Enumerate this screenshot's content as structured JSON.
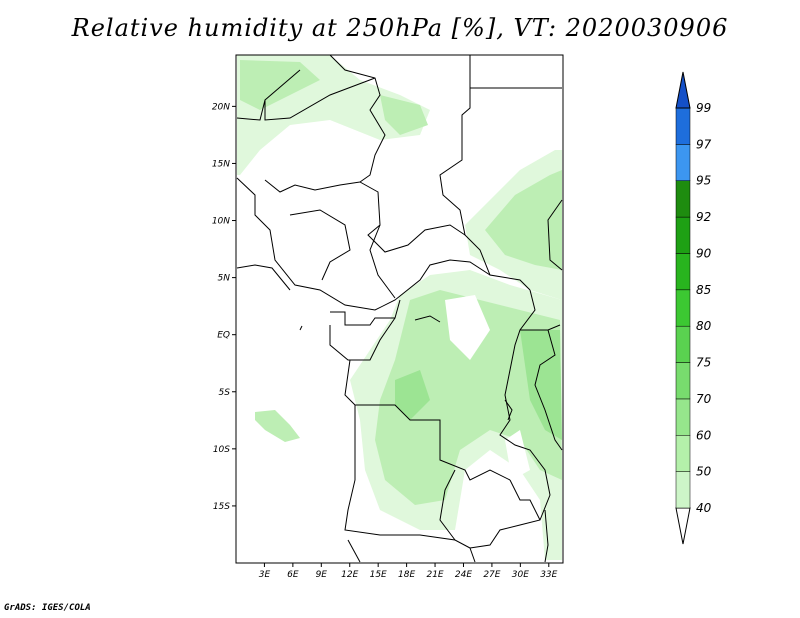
{
  "title": "Relative humidity at 250hPa [%], VT: 2020030906",
  "credit": "GrADS: IGES/COLA",
  "map": {
    "lon_range": [
      0,
      34.5
    ],
    "lat_range": [
      -20,
      24.5
    ],
    "x_ticks": [
      "3E",
      "6E",
      "9E",
      "12E",
      "15E",
      "18E",
      "21E",
      "24E",
      "27E",
      "30E",
      "33E"
    ],
    "y_ticks": [
      "20N",
      "15N",
      "10N",
      "5N",
      "EQ",
      "5S",
      "10S",
      "15S"
    ]
  },
  "colorbar": {
    "levels": [
      "40",
      "50",
      "60",
      "70",
      "75",
      "80",
      "85",
      "90",
      "92",
      "95",
      "97",
      "99"
    ],
    "colors": [
      "#e6fae6",
      "#cdf5c8",
      "#b4f0aa",
      "#96e68c",
      "#78dc6e",
      "#5ad250",
      "#3cc832",
      "#28b41e",
      "#1ea014",
      "#1e8c0f",
      "#3c96f0",
      "#1e6edc",
      "#1450c8"
    ]
  },
  "field_colors": {
    "light": "#e0f8dc",
    "mid": "#bdeeb4",
    "strong": "#9ce493"
  }
}
